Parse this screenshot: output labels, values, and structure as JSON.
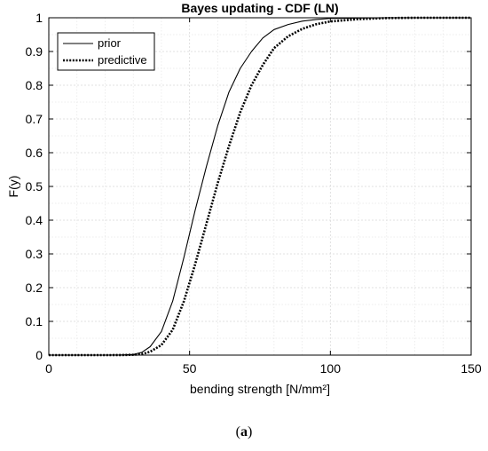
{
  "chart_data": {
    "type": "line",
    "title": "Bayes updating - CDF (LN)",
    "xlabel": "bending strength [N/mm²]",
    "ylabel": "F(y)",
    "xlim": [
      0,
      150
    ],
    "ylim": [
      0,
      1
    ],
    "xticks": [
      "0",
      "50",
      "100",
      "150"
    ],
    "yticks": [
      "0",
      "0.1",
      "0.2",
      "0.3",
      "0.4",
      "0.5",
      "0.6",
      "0.7",
      "0.8",
      "0.9",
      "1"
    ],
    "grid": true,
    "minor_grid": true,
    "legend_position": "top-left",
    "x": [
      0,
      10,
      20,
      25,
      30,
      33,
      36,
      40,
      44,
      48,
      52,
      56,
      60,
      64,
      68,
      72,
      76,
      80,
      85,
      90,
      95,
      100,
      110,
      120,
      130,
      150
    ],
    "series": [
      {
        "name": "prior",
        "style": "solid",
        "values": [
          0,
          0,
          0,
          0.0001,
          0.002,
          0.008,
          0.025,
          0.07,
          0.16,
          0.29,
          0.43,
          0.56,
          0.68,
          0.78,
          0.85,
          0.9,
          0.94,
          0.965,
          0.98,
          0.99,
          0.995,
          0.998,
          0.999,
          1,
          1,
          1
        ]
      },
      {
        "name": "predictive",
        "style": "dotted",
        "values": [
          0,
          0,
          0,
          5e-05,
          0.001,
          0.003,
          0.01,
          0.03,
          0.075,
          0.16,
          0.27,
          0.39,
          0.51,
          0.62,
          0.72,
          0.8,
          0.86,
          0.91,
          0.945,
          0.967,
          0.981,
          0.989,
          0.996,
          0.999,
          1,
          1
        ]
      }
    ]
  },
  "caption": {
    "open": "(",
    "letter": "a",
    "close": ")"
  },
  "colors": {
    "line": "#000000",
    "grid": "#d9d9d9",
    "minor_grid": "#e6e6e6"
  }
}
